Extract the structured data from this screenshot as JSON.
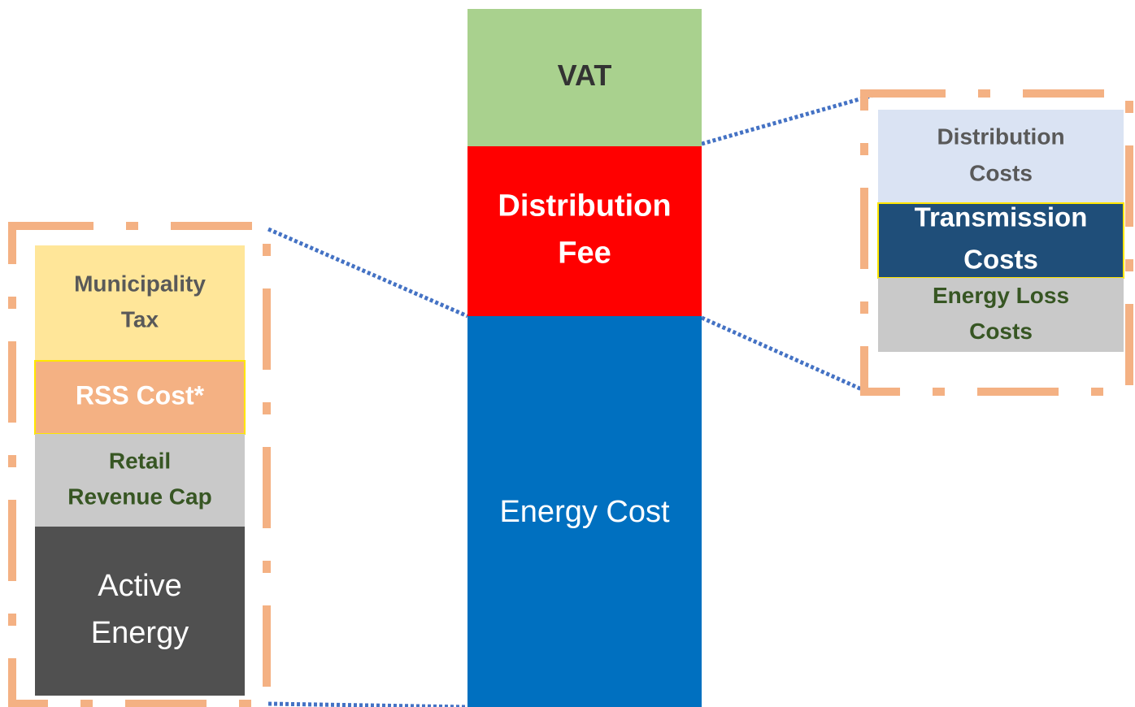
{
  "center": [
    {
      "label": [
        "VAT"
      ]
    },
    {
      "label": [
        "Distribution",
        "Fee"
      ]
    },
    {
      "label": [
        "Energy Cost"
      ]
    }
  ],
  "left": [
    {
      "label": [
        "Municipality",
        "Tax"
      ]
    },
    {
      "label": [
        "RSS Cost*"
      ]
    },
    {
      "label": [
        "Retail",
        "Revenue Cap"
      ]
    },
    {
      "label": [
        "Active",
        "Energy"
      ]
    }
  ],
  "right": [
    {
      "label": [
        "Distribution",
        "Costs"
      ]
    },
    {
      "label": [
        "Transmission",
        "Costs"
      ]
    },
    {
      "label": [
        "Energy Loss",
        "Costs"
      ]
    }
  ]
}
